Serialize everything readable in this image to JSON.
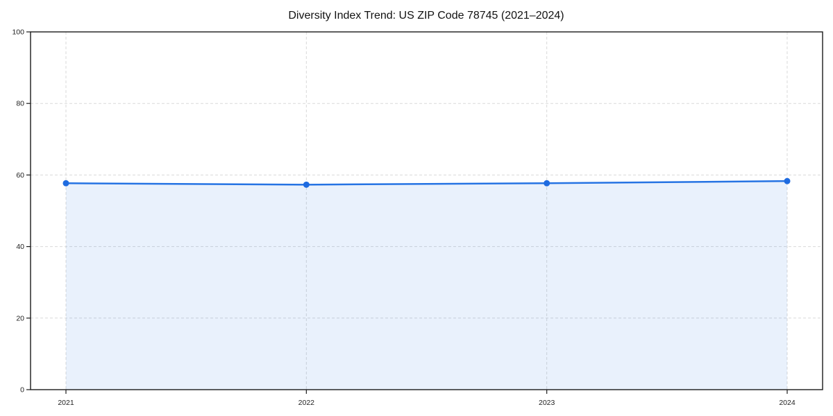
{
  "window": {
    "background": "#ffffff"
  },
  "chart_data": {
    "type": "area",
    "title": "Diversity Index Trend: US ZIP Code 78745 (2021–2024)",
    "categories": [
      "2021",
      "2022",
      "2023",
      "2024"
    ],
    "x": [
      2021,
      2022,
      2023,
      2024
    ],
    "series": [
      {
        "name": "Diversity Index",
        "values": [
          57.7,
          57.3,
          57.7,
          58.3
        ]
      }
    ],
    "xlabel": "",
    "ylabel": "",
    "ylim": [
      0,
      100
    ],
    "yticks": [
      0,
      20,
      40,
      60,
      80,
      100
    ],
    "grid": {
      "style": "dashed",
      "horizontal": true,
      "vertical": true
    },
    "legend": {
      "visible": false
    },
    "markers": "filled-circle",
    "colors": {
      "line": "#2573e3",
      "marker": "#1e6be0",
      "fill": "#2573e3",
      "fill_opacity": 0.1,
      "grid": "#d9d9d9",
      "spine": "#1a1a1a",
      "tick_label": "#222222",
      "title": "#111111",
      "background": "#ffffff"
    }
  }
}
